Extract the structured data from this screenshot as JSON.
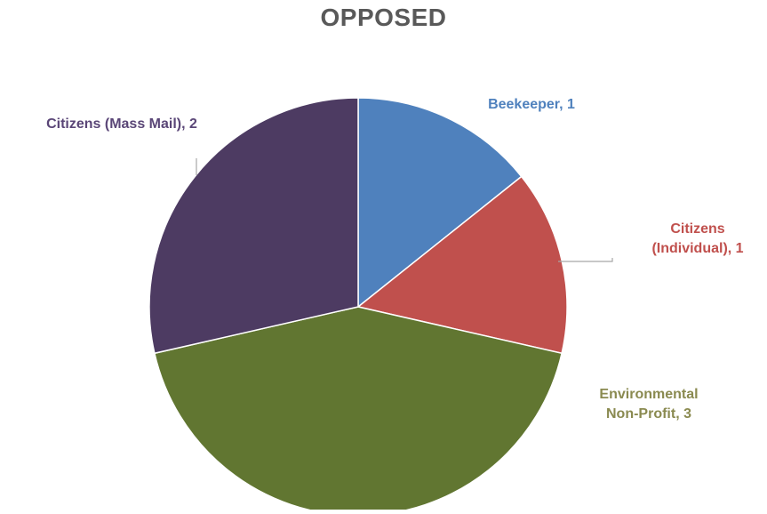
{
  "chart_data": {
    "type": "pie",
    "title": "OPPOSED",
    "categories": [
      "Beekeeper",
      "Citizens (Individual)",
      "Environmental Non-Profit",
      "Citizens (Mass Mail)"
    ],
    "values": [
      1,
      1,
      3,
      2
    ],
    "colors": [
      "#4f81bd",
      "#c0504d",
      "#617631",
      "#4d3b62"
    ],
    "label_colors": [
      "#4f81bd",
      "#c0504d",
      "#8a8a50",
      "#5a4677"
    ],
    "data_labels": [
      [
        "Beekeeper, 1"
      ],
      [
        "Citizens",
        "(Individual), 1"
      ],
      [
        "Environmental",
        "Non-Profit, 3"
      ],
      [
        "Citizens (Mass Mail), 2"
      ]
    ],
    "start_angle_deg": 0,
    "direction": "clockwise",
    "legend": "none"
  }
}
